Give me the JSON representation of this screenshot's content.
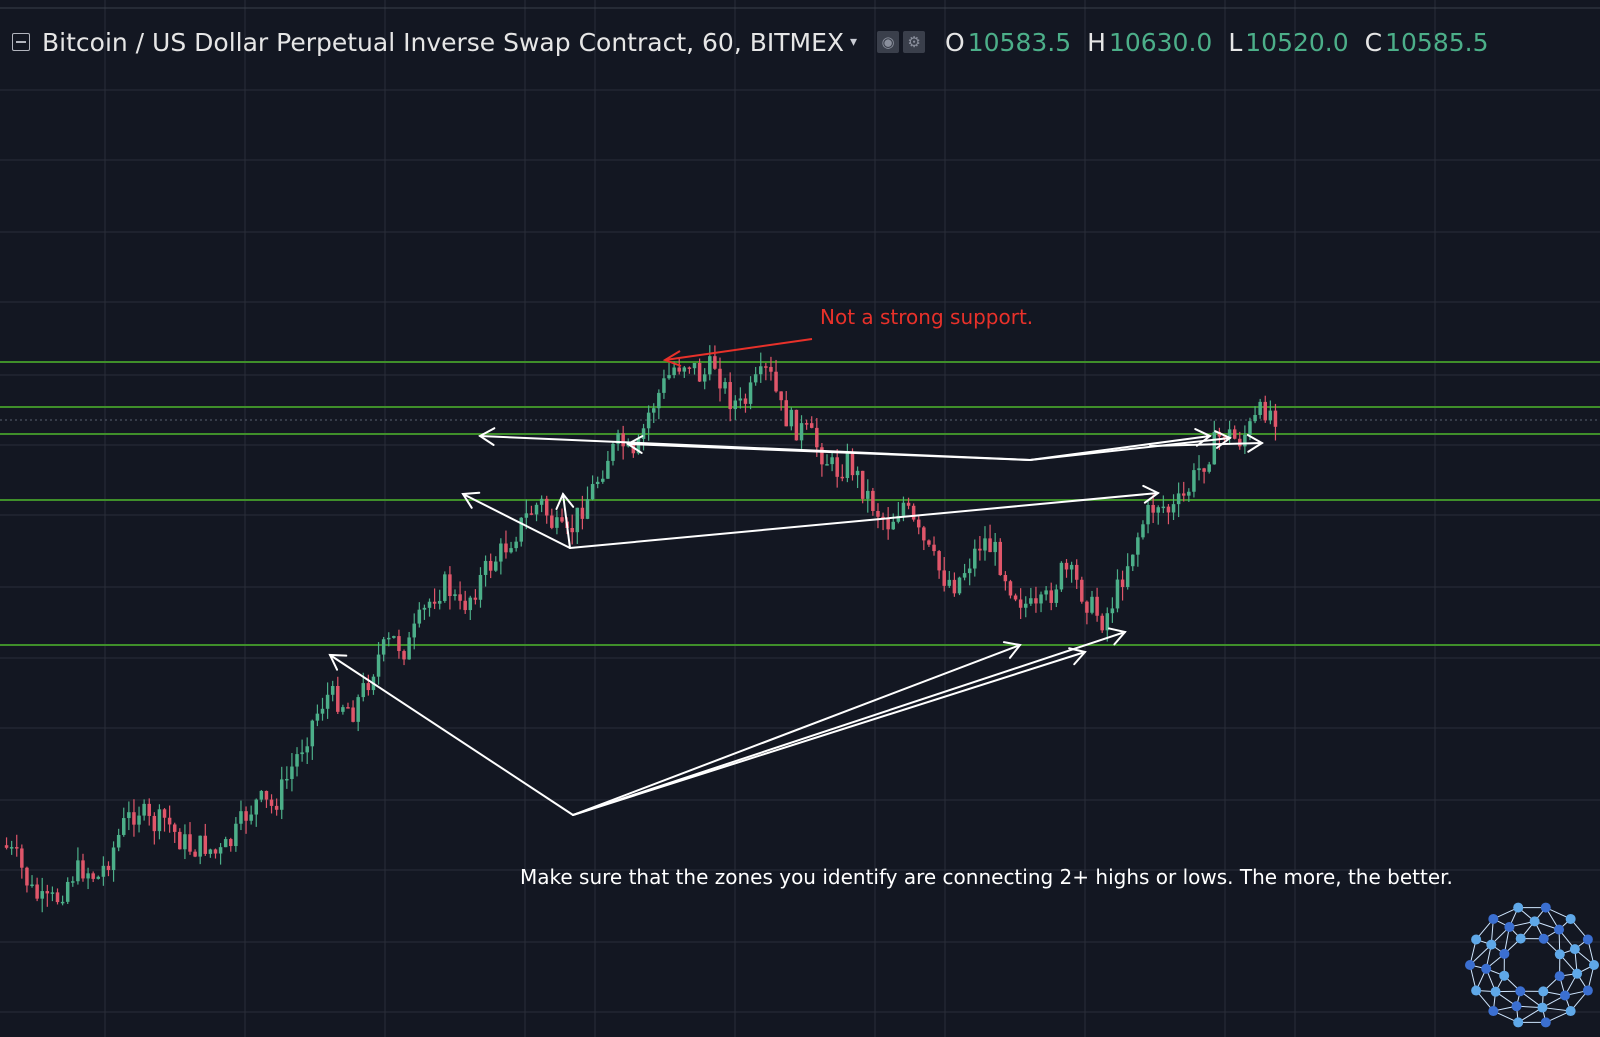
{
  "header": {
    "title": "Bitcoin / US Dollar Perpetual Inverse Swap Contract, 60, BITMEX",
    "ohlc": {
      "o_label": "O",
      "o_value": "10583.5",
      "h_label": "H",
      "h_value": "10630.0",
      "l_label": "L",
      "l_value": "10520.0",
      "c_label": "C",
      "c_value": "10585.5"
    }
  },
  "colors": {
    "background": "#131722",
    "grid": "#2a2e39",
    "up_candle": "#4caf89",
    "down_candle": "#e0566a",
    "level_line": "#3f8f2a",
    "arrow": "#ffffff",
    "note_red": "#e8312a"
  },
  "annotations": {
    "red_note": "Not a strong support.",
    "bottom_note": "Make sure that the zones you identify are connecting 2+ highs or lows. The more, the better."
  },
  "chart_data": {
    "type": "candlestick",
    "symbol": "BTC/USD perpetual, BITMEX",
    "timeframe_minutes": 60,
    "y_axis_labels_visible": false,
    "grid": true,
    "support_resistance_levels": [
      {
        "level": 1,
        "description": "upper resistance zone top"
      },
      {
        "level": 2,
        "description": "upper zone middle"
      },
      {
        "level": 3,
        "description": "upper zone bottom"
      },
      {
        "level": 4,
        "description": "mid support/resistance"
      },
      {
        "level": 5,
        "description": "lower support"
      }
    ],
    "price_path_relative": [
      0.3,
      0.26,
      0.18,
      0.14,
      0.16,
      0.22,
      0.24,
      0.21,
      0.28,
      0.36,
      0.4,
      0.35,
      0.37,
      0.32,
      0.29,
      0.3,
      0.27,
      0.31,
      0.38,
      0.42,
      0.4,
      0.47,
      0.55,
      0.63,
      0.7,
      0.69,
      0.66,
      0.73,
      0.81,
      0.85,
      0.82,
      0.9,
      0.97,
      1.0,
      0.93,
      0.98,
      1.04,
      1.08,
      1.13,
      1.18,
      1.22,
      1.15,
      1.12,
      1.2,
      1.26,
      1.34,
      1.38,
      1.32,
      1.45,
      1.52,
      1.58,
      1.6,
      1.55,
      1.59,
      1.5,
      1.47,
      1.53,
      1.57,
      1.46,
      1.42,
      1.4,
      1.35,
      1.3,
      1.33,
      1.26,
      1.2,
      1.16,
      1.22,
      1.14,
      1.08,
      1.02,
      1.0,
      1.06,
      1.12,
      1.08,
      1.0,
      0.95,
      0.92,
      0.97,
      1.04,
      1.0,
      0.94,
      0.9,
      0.98,
      1.08,
      1.17,
      1.22,
      1.19,
      1.23,
      1.3,
      1.36,
      1.41,
      1.38,
      1.42,
      1.47,
      1.45
    ]
  }
}
